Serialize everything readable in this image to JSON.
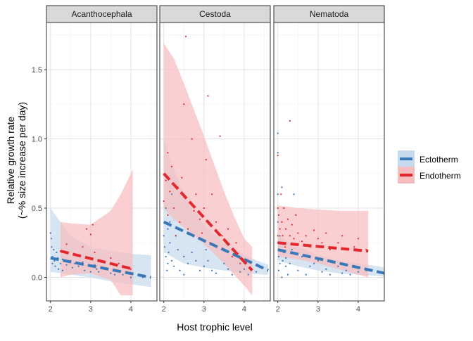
{
  "chart_data": {
    "type": "scatter",
    "ylabel_line1": "Relative growth rate",
    "ylabel_line2": "(~% size increase per day)",
    "xlabel": "Host trophic level",
    "xlim": [
      1.9,
      4.65
    ],
    "ylim": [
      -0.17,
      1.84
    ],
    "x_ticks": [
      2,
      3,
      4
    ],
    "y_ticks": [
      0.0,
      0.5,
      1.0,
      1.5
    ],
    "y_tick_labels": [
      "0.0",
      "0.5",
      "1.0",
      "1.5"
    ],
    "grid": true,
    "legend_position": "right",
    "series": [
      {
        "name": "Ectotherm",
        "color": "#3A78B7",
        "fill": "#C7D9EC"
      },
      {
        "name": "Endotherm",
        "color": "#E3282D",
        "fill": "#F6BDBF"
      }
    ],
    "panels": [
      {
        "title": "Acanthocephala",
        "ribbons": [
          {
            "series": "Ectotherm",
            "x": [
              2.0,
              2.5,
              3.0,
              3.5,
              4.0,
              4.5
            ],
            "lower": [
              0.04,
              0.02,
              0.0,
              -0.03,
              -0.05,
              -0.07
            ],
            "upper": [
              0.5,
              0.3,
              0.22,
              0.19,
              0.17,
              0.16
            ]
          },
          {
            "series": "Endotherm",
            "x": [
              2.25,
              2.5,
              3.0,
              3.5,
              3.75,
              4.0,
              4.05
            ],
            "lower": [
              0.0,
              0.02,
              0.03,
              -0.02,
              -0.13,
              -0.13,
              -0.13
            ],
            "upper": [
              0.4,
              0.39,
              0.38,
              0.48,
              0.6,
              0.75,
              0.78
            ]
          }
        ],
        "lines": [
          {
            "series": "Ectotherm",
            "x": [
              2.0,
              4.5
            ],
            "y": [
              0.14,
              0.0
            ]
          },
          {
            "series": "Endotherm",
            "x": [
              2.25,
              4.05
            ],
            "y": [
              0.19,
              0.06
            ]
          }
        ],
        "points": [
          {
            "series": "Ectotherm",
            "x": [
              2.0,
              2.02,
              2.03,
              2.05,
              2.05,
              2.08,
              2.1,
              2.12,
              2.15,
              2.18,
              2.2,
              2.25,
              2.3,
              2.3,
              2.4,
              2.5,
              2.55,
              2.6,
              2.7,
              2.8,
              2.85,
              3.0,
              3.1,
              3.15,
              3.2,
              3.4,
              3.5,
              3.6,
              3.8,
              3.9,
              4.0,
              4.3
            ],
            "y": [
              0.32,
              0.28,
              0.22,
              0.15,
              0.1,
              0.2,
              0.12,
              0.08,
              0.18,
              0.14,
              0.06,
              0.1,
              0.13,
              0.05,
              0.09,
              0.12,
              0.07,
              0.1,
              0.08,
              0.11,
              0.05,
              0.04,
              0.09,
              0.06,
              0.04,
              0.06,
              0.03,
              0.02,
              0.02,
              0.04,
              0.0,
              0.0
            ]
          },
          {
            "series": "Endotherm",
            "x": [
              2.25,
              2.4,
              2.8,
              2.9,
              3.0,
              3.05,
              3.1,
              3.5,
              3.7,
              4.0
            ],
            "y": [
              0.19,
              0.24,
              0.22,
              0.35,
              0.31,
              0.38,
              0.18,
              0.14,
              0.1,
              0.06
            ]
          }
        ]
      },
      {
        "title": "Cestoda",
        "ribbons": [
          {
            "series": "Ectotherm",
            "x": [
              2.0,
              2.25,
              2.5,
              3.0,
              3.5,
              4.0,
              4.5,
              4.6
            ],
            "lower": [
              0.18,
              0.14,
              0.1,
              0.07,
              0.05,
              0.03,
              0.02,
              0.02
            ],
            "upper": [
              1.0,
              0.78,
              0.6,
              0.38,
              0.25,
              0.16,
              0.1,
              0.09
            ]
          },
          {
            "series": "Endotherm",
            "x": [
              2.0,
              2.25,
              2.5,
              3.0,
              3.5,
              3.75,
              4.0,
              4.2
            ],
            "lower": [
              0.5,
              0.42,
              0.36,
              0.24,
              0.1,
              0.02,
              -0.06,
              -0.13
            ],
            "upper": [
              1.69,
              1.58,
              1.4,
              1.02,
              0.62,
              0.44,
              0.28,
              0.22
            ]
          }
        ],
        "lines": [
          {
            "series": "Ectotherm",
            "x": [
              2.0,
              4.6
            ],
            "y": [
              0.4,
              0.05
            ]
          },
          {
            "series": "Endotherm",
            "x": [
              2.0,
              4.2
            ],
            "y": [
              0.75,
              0.05
            ]
          }
        ],
        "points": [
          {
            "series": "Ectotherm",
            "x": [
              2.0,
              2.02,
              2.05,
              2.05,
              2.08,
              2.1,
              2.1,
              2.12,
              2.15,
              2.15,
              2.2,
              2.2,
              2.25,
              2.3,
              2.35,
              2.4,
              2.5,
              2.5,
              2.6,
              2.7,
              2.8,
              2.9,
              3.0,
              3.05,
              3.1,
              3.2,
              3.3,
              3.5,
              3.6,
              3.7,
              3.9,
              4.0,
              4.1,
              4.3
            ],
            "y": [
              0.3,
              0.22,
              0.15,
              0.5,
              0.05,
              0.35,
              0.1,
              0.18,
              0.4,
              0.25,
              0.12,
              0.6,
              0.08,
              0.3,
              0.2,
              0.05,
              0.15,
              0.02,
              0.1,
              0.18,
              0.12,
              0.05,
              0.08,
              0.2,
              0.12,
              0.05,
              0.03,
              0.1,
              0.06,
              0.02,
              0.04,
              0.06,
              0.02,
              0.04
            ]
          },
          {
            "series": "Endotherm",
            "x": [
              2.0,
              2.05,
              2.1,
              2.1,
              2.15,
              2.2,
              2.25,
              2.3,
              2.35,
              2.4,
              2.45,
              2.5,
              2.5,
              2.55,
              2.6,
              2.7,
              2.75,
              2.8,
              2.9,
              2.95,
              3.0,
              3.05,
              3.1,
              3.15,
              3.2,
              3.3,
              3.4,
              3.45,
              3.5,
              3.6,
              3.7,
              3.8,
              3.9
            ],
            "y": [
              0.55,
              0.7,
              0.45,
              0.9,
              0.62,
              0.8,
              0.5,
              0.3,
              0.65,
              0.4,
              0.72,
              1.25,
              0.58,
              1.74,
              0.35,
              1.0,
              0.48,
              0.6,
              0.42,
              0.32,
              0.5,
              0.85,
              1.31,
              0.25,
              0.6,
              0.4,
              1.02,
              0.3,
              0.2,
              0.35,
              0.15,
              0.25,
              0.1
            ]
          }
        ]
      },
      {
        "title": "Nematoda",
        "ribbons": [
          {
            "series": "Ectotherm",
            "x": [
              2.0,
              2.5,
              3.0,
              3.5,
              4.0,
              4.5,
              4.65
            ],
            "lower": [
              0.12,
              0.08,
              0.05,
              0.03,
              0.02,
              0.01,
              0.005
            ],
            "upper": [
              0.3,
              0.22,
              0.16,
              0.12,
              0.1,
              0.08,
              0.07
            ]
          },
          {
            "series": "Endotherm",
            "x": [
              2.0,
              2.5,
              3.0,
              3.5,
              4.0,
              4.25
            ],
            "lower": [
              0.15,
              0.13,
              0.1,
              0.06,
              0.02,
              0.0
            ],
            "upper": [
              0.52,
              0.5,
              0.49,
              0.48,
              0.48,
              0.48
            ]
          }
        ],
        "lines": [
          {
            "series": "Ectotherm",
            "x": [
              2.0,
              4.65
            ],
            "y": [
              0.2,
              0.03
            ]
          },
          {
            "series": "Endotherm",
            "x": [
              2.0,
              4.25
            ],
            "y": [
              0.25,
              0.19
            ]
          }
        ],
        "points": [
          {
            "series": "Ectotherm",
            "x": [
              2.0,
              2.0,
              2.0,
              2.0,
              2.0,
              2.02,
              2.02,
              2.05,
              2.05,
              2.08,
              2.1,
              2.1,
              2.12,
              2.15,
              2.2,
              2.2,
              2.25,
              2.3,
              2.35,
              2.4,
              2.5,
              2.6,
              2.7,
              2.8,
              2.9,
              3.0,
              3.1,
              3.2,
              3.3,
              3.5,
              3.6,
              3.7,
              3.8,
              4.0,
              4.2
            ],
            "y": [
              1.04,
              0.9,
              0.6,
              0.4,
              0.25,
              0.15,
              0.05,
              0.3,
              0.1,
              0.2,
              0.65,
              0.0,
              0.12,
              0.18,
              0.08,
              0.14,
              0.02,
              0.1,
              0.2,
              0.6,
              0.05,
              0.15,
              0.02,
              0.08,
              0.1,
              0.12,
              0.04,
              0.06,
              0.02,
              0.08,
              0.03,
              0.05,
              0.02,
              0.04,
              0.05
            ]
          },
          {
            "series": "Endotherm",
            "x": [
              2.0,
              2.0,
              2.0,
              2.02,
              2.05,
              2.05,
              2.08,
              2.1,
              2.1,
              2.12,
              2.15,
              2.18,
              2.2,
              2.25,
              2.3,
              2.3,
              2.35,
              2.4,
              2.45,
              2.5,
              2.6,
              2.7,
              2.8,
              2.9,
              3.0,
              3.1,
              3.2,
              3.3,
              3.5,
              3.6,
              3.7,
              3.9,
              4.0,
              4.2
            ],
            "y": [
              0.88,
              0.5,
              0.3,
              0.45,
              0.2,
              0.35,
              0.6,
              0.4,
              0.25,
              0.3,
              0.5,
              0.22,
              0.35,
              0.42,
              1.13,
              0.3,
              0.38,
              0.28,
              0.45,
              0.32,
              0.26,
              0.3,
              0.22,
              0.34,
              0.28,
              0.25,
              0.32,
              0.2,
              0.25,
              0.3,
              0.2,
              0.22,
              0.28,
              0.2
            ]
          }
        ]
      }
    ]
  }
}
